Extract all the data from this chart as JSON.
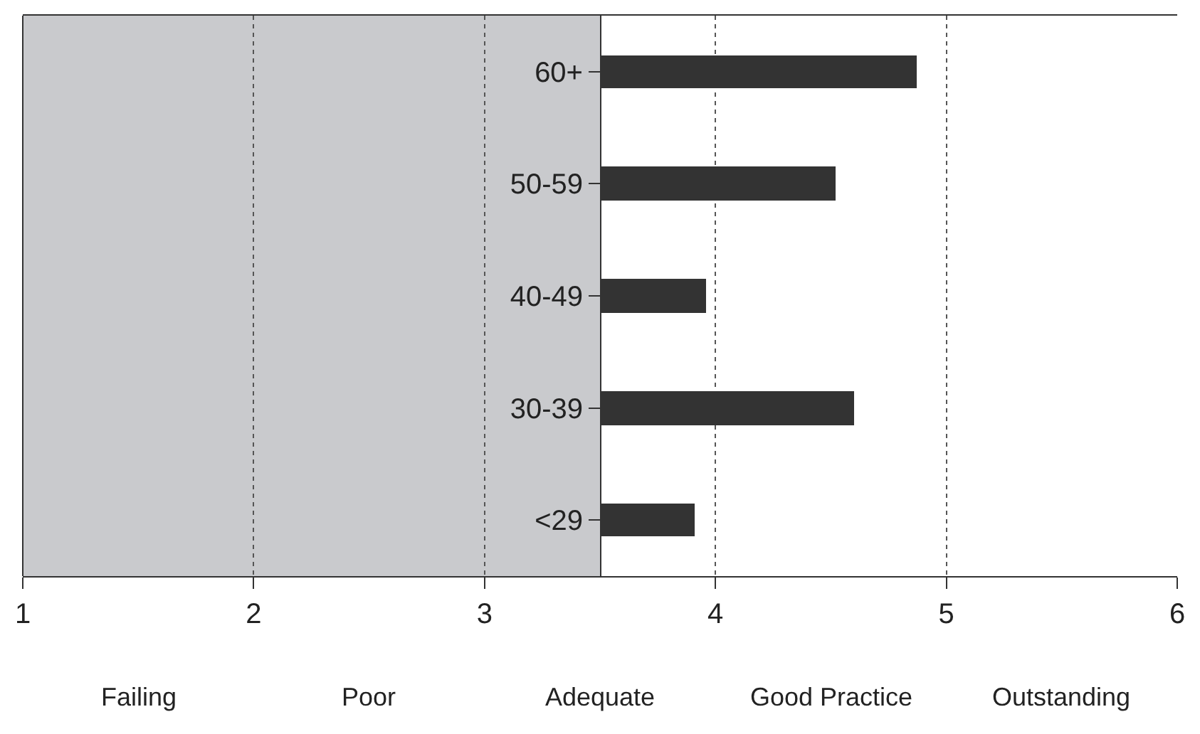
{
  "chart_data": {
    "type": "bar",
    "orientation": "horizontal",
    "categories": [
      "60+",
      "50-59",
      "40-49",
      "30-39",
      "<29"
    ],
    "values": [
      1.37,
      1.02,
      0.46,
      1.1,
      0.41
    ],
    "base": [
      3.5,
      3.5,
      3.5,
      3.5,
      3.5
    ],
    "color": "#333333",
    "xlim": [
      1,
      6
    ],
    "xticks": [
      1,
      2,
      3,
      4,
      5,
      6
    ],
    "grid": "x",
    "line_style": "dotted",
    "bands": [
      {
        "axis": "x",
        "from": 1,
        "to": 3.5,
        "color": "#c9cacd"
      }
    ],
    "annotations": [
      "Failing",
      "Poor",
      "Adequate",
      "Good Practice",
      "Outstanding"
    ]
  }
}
